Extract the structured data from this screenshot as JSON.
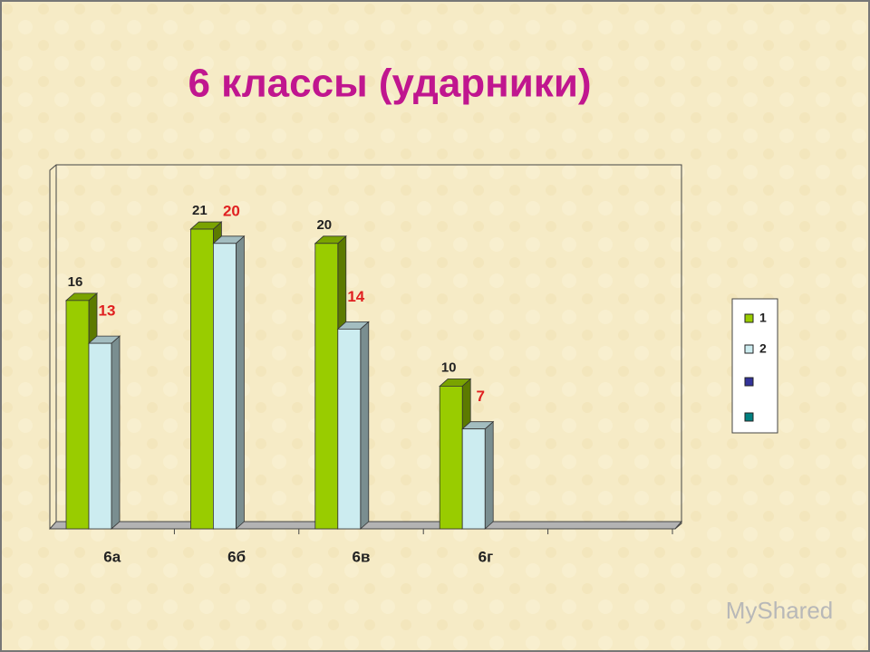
{
  "chart_data": {
    "type": "bar3d",
    "title": "6 классы (ударники)",
    "categories": [
      "6а",
      "6б",
      "6в",
      "6г",
      null
    ],
    "series": [
      {
        "name": "1",
        "color": "#99cc00",
        "label_color": "#222222",
        "values": [
          16,
          21,
          20,
          10,
          null
        ]
      },
      {
        "name": "2",
        "color": "#ccecf0",
        "label_color": "#e02020",
        "values": [
          13,
          20,
          14,
          7,
          null
        ]
      }
    ],
    "ylim": [
      0,
      25
    ]
  },
  "watermark": "MyShared"
}
